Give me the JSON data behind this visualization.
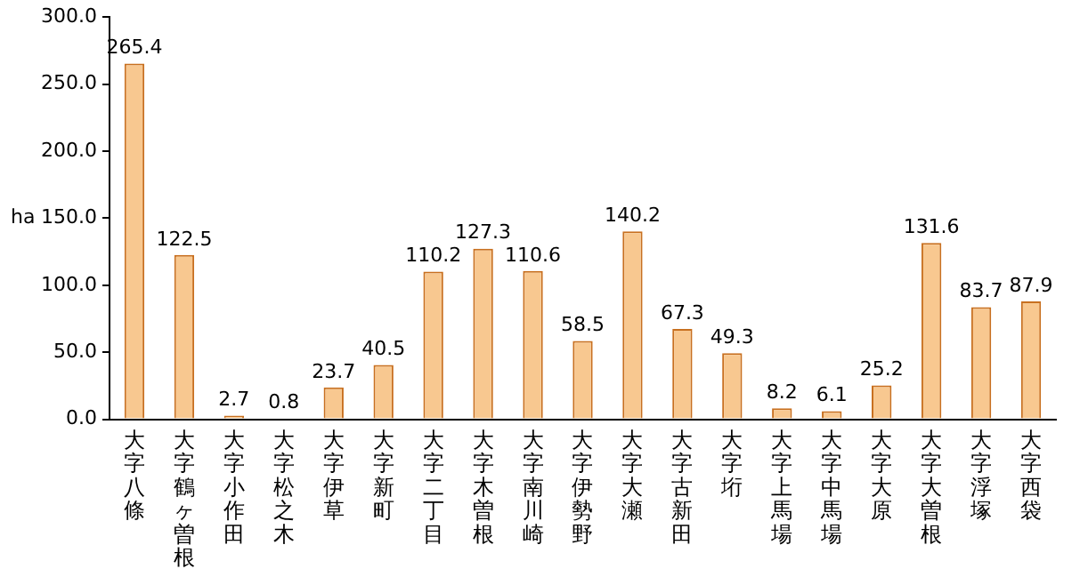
{
  "chart_data": {
    "type": "bar",
    "ylabel": "ha",
    "categories": [
      "大字八條",
      "大字鶴ヶ曽根",
      "大字小作田",
      "大字松之木",
      "大字伊草",
      "大字新町",
      "大字二丁目",
      "大字木曽根",
      "大字南川崎",
      "大字伊勢野",
      "大字大瀬",
      "大字古新田",
      "大字垳",
      "大字上馬場",
      "大字中馬場",
      "大字大原",
      "大字大曽根",
      "大字浮塚",
      "大字西袋"
    ],
    "values": [
      265.4,
      122.5,
      2.7,
      0.8,
      23.7,
      40.5,
      110.2,
      127.3,
      110.6,
      58.5,
      140.2,
      67.3,
      49.3,
      8.2,
      6.1,
      25.2,
      131.6,
      83.7,
      87.9
    ],
    "value_labels": [
      "265.4",
      "122.5",
      "2.7",
      "0.8",
      "23.7",
      "40.5",
      "110.2",
      "127.3",
      "110.6",
      "58.5",
      "140.2",
      "67.3",
      "49.3",
      "8.2",
      "6.1",
      "25.2",
      "131.6",
      "83.7",
      "87.9"
    ],
    "color": "#f8c890",
    "ylim": [
      0,
      300
    ],
    "yticks": [
      {
        "value": 0,
        "label": "0.0"
      },
      {
        "value": 50,
        "label": "50.0"
      },
      {
        "value": 100,
        "label": "100.0"
      },
      {
        "value": 150,
        "label": "150.0"
      },
      {
        "value": 200,
        "label": "200.0"
      },
      {
        "value": 250,
        "label": "250.0"
      },
      {
        "value": 300,
        "label": "300.0"
      }
    ],
    "grid": false,
    "legend": false
  }
}
